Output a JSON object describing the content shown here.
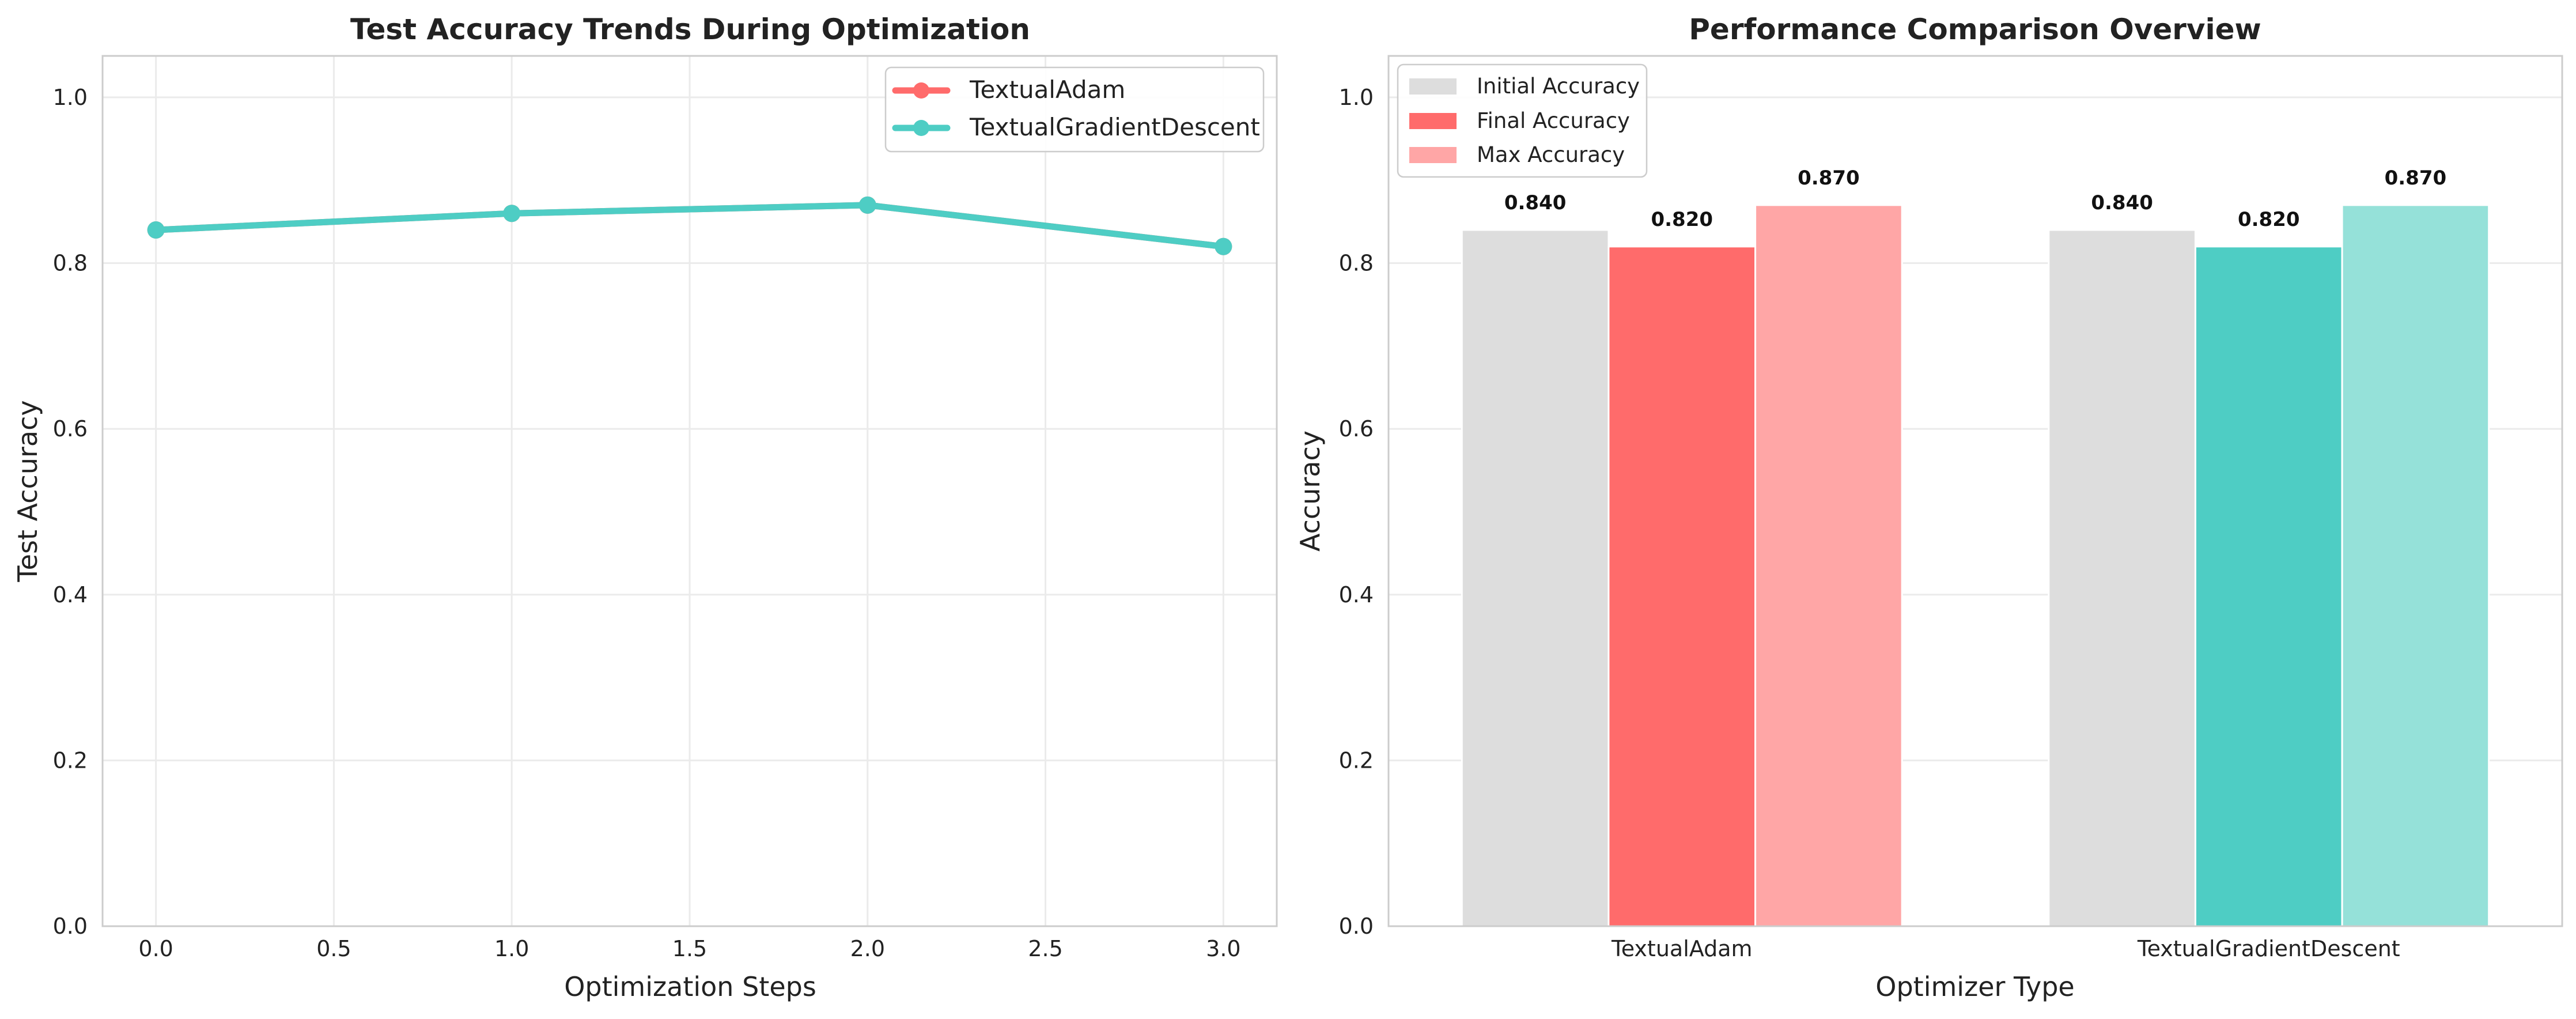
{
  "colors": {
    "textual_adam": "#ff6b6b",
    "textual_gradient_descent": "#4ecdc4",
    "initial_gray": "#dddddd",
    "grid": "#ebebeb",
    "axes_border": "#cccccc"
  },
  "chart_data": [
    {
      "type": "line",
      "title": "Test Accuracy Trends During Optimization",
      "xlabel": "Optimization Steps",
      "ylabel": "Test Accuracy",
      "xlim": [
        -0.15,
        3.15
      ],
      "ylim": [
        0,
        1.05
      ],
      "xticks": [
        0.0,
        0.5,
        1.0,
        1.5,
        2.0,
        2.5,
        3.0
      ],
      "xtick_labels": [
        "0.0",
        "0.5",
        "1.0",
        "1.5",
        "2.0",
        "2.5",
        "3.0"
      ],
      "yticks": [
        0.0,
        0.2,
        0.4,
        0.6,
        0.8,
        1.0
      ],
      "ytick_labels": [
        "0.0",
        "0.2",
        "0.4",
        "0.6",
        "0.8",
        "1.0"
      ],
      "grid": true,
      "legend_position": "top-right",
      "series": [
        {
          "name": "TextualAdam",
          "color": "#ff6b6b",
          "x": [
            0,
            1,
            2,
            3
          ],
          "y": [
            0.84,
            0.86,
            0.87,
            0.82
          ]
        },
        {
          "name": "TextualGradientDescent",
          "color": "#4ecdc4",
          "x": [
            0,
            1,
            2,
            3
          ],
          "y": [
            0.84,
            0.86,
            0.87,
            0.82
          ]
        }
      ]
    },
    {
      "type": "bar",
      "title": "Performance Comparison Overview",
      "xlabel": "Optimizer Type",
      "ylabel": "Accuracy",
      "ylim": [
        0,
        1.05
      ],
      "yticks": [
        0.0,
        0.2,
        0.4,
        0.6,
        0.8,
        1.0
      ],
      "ytick_labels": [
        "0.0",
        "0.2",
        "0.4",
        "0.6",
        "0.8",
        "1.0"
      ],
      "grid": true,
      "legend_position": "top-left",
      "categories": [
        "TextualAdam",
        "TextualGradientDescent"
      ],
      "series": [
        {
          "name": "Initial Accuracy",
          "values": [
            0.84,
            0.84
          ],
          "labels": [
            "0.840",
            "0.840"
          ],
          "colors": [
            "#dddddd",
            "#dddddd"
          ],
          "legend_color": "#dddddd"
        },
        {
          "name": "Final Accuracy",
          "values": [
            0.82,
            0.82
          ],
          "labels": [
            "0.820",
            "0.820"
          ],
          "colors": [
            "#ff6b6b",
            "#4ecdc4"
          ],
          "legend_color": "#ff6b6b"
        },
        {
          "name": "Max Accuracy",
          "values": [
            0.87,
            0.87
          ],
          "labels": [
            "0.870",
            "0.870"
          ],
          "colors": [
            "#ffa6a6",
            "#95e1d9"
          ],
          "legend_color": "#ffa6a6"
        }
      ]
    }
  ]
}
